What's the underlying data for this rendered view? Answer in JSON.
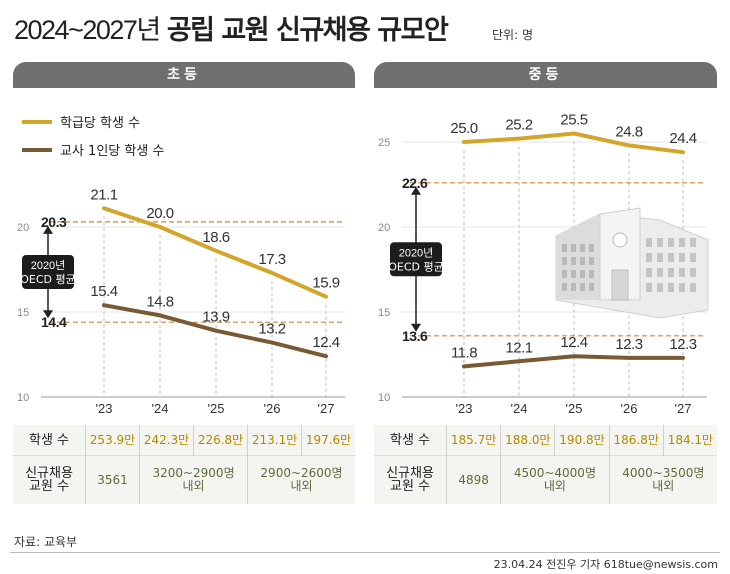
{
  "title": {
    "years": "2024~2027년",
    "heading": "공립 교원 신규채용 규모안"
  },
  "unit": "단위: 명",
  "source": "자료: 교육부",
  "credit": "23.04.24 전진우 기자 618tue@newsis.com",
  "colors": {
    "students_per_class": "#d3a52b",
    "students_per_teacher": "#7a5a34",
    "oecd_line": "#c98a3a",
    "header": "#6f6f6f"
  },
  "chart_data": [
    {
      "type": "line",
      "title": "초등",
      "categories": [
        "'23",
        "'24",
        "'25",
        "'26",
        "'27"
      ],
      "ylim": [
        10,
        26
      ],
      "yticks": [
        "10",
        "15",
        "20"
      ],
      "series": [
        {
          "name": "학급당 학생 수",
          "values": [
            21.1,
            20.0,
            18.6,
            17.3,
            15.9
          ],
          "labels": [
            "21.1",
            "20.0",
            "18.6",
            "17.3",
            "15.9"
          ]
        },
        {
          "name": "교사 1인당 학생 수",
          "values": [
            15.4,
            14.8,
            13.9,
            13.2,
            12.4
          ],
          "labels": [
            "15.4",
            "14.8",
            "13.9",
            "13.2",
            "12.4"
          ]
        }
      ],
      "oecd": {
        "label_line1": "2020년",
        "label_line2": "OECD 평균",
        "values": [
          20.3,
          14.4
        ],
        "labels": [
          "20.3",
          "14.4"
        ]
      }
    },
    {
      "type": "line",
      "title": "중등",
      "categories": [
        "'23",
        "'24",
        "'25",
        "'26",
        "'27"
      ],
      "ylim": [
        10,
        26
      ],
      "yticks": [
        "10",
        "15",
        "20",
        "25"
      ],
      "series": [
        {
          "name": "학급당 학생 수",
          "values": [
            25.0,
            25.2,
            25.5,
            24.8,
            24.4
          ],
          "labels": [
            "25.0",
            "25.2",
            "25.5",
            "24.8",
            "24.4"
          ]
        },
        {
          "name": "교사 1인당 학생 수",
          "values": [
            11.8,
            12.1,
            12.4,
            12.3,
            12.3
          ],
          "labels": [
            "11.8",
            "12.1",
            "12.4",
            "12.3",
            "12.3"
          ]
        }
      ],
      "oecd": {
        "label_line1": "2020년",
        "label_line2": "OECD 평균",
        "values": [
          22.6,
          13.6
        ],
        "labels": [
          "22.6",
          "13.6"
        ]
      }
    }
  ],
  "legend": {
    "students_per_class": "학급당 학생 수",
    "students_per_teacher": "교사 1인당 학생 수"
  },
  "tables": {
    "elementary": {
      "row1_label": "학생 수",
      "row1_values": [
        "253.9만",
        "242.3만",
        "226.8만",
        "213.1만",
        "197.6만"
      ],
      "row2_label_line1": "신규채용",
      "row2_label_line2": "교원 수",
      "row2_values": [
        {
          "line1": "3561",
          "line2": ""
        },
        {
          "line1": "3200~2900명",
          "line2": "내외"
        },
        {
          "line1": "2900~2600명",
          "line2": "내외"
        }
      ]
    },
    "secondary": {
      "row1_label": "학생 수",
      "row1_values": [
        "185.7만",
        "188.0만",
        "190.8만",
        "186.8만",
        "184.1만"
      ],
      "row2_label_line1": "신규채용",
      "row2_label_line2": "교원 수",
      "row2_values": [
        {
          "line1": "4898",
          "line2": ""
        },
        {
          "line1": "4500~4000명",
          "line2": "내외"
        },
        {
          "line1": "4000~3500명",
          "line2": "내외"
        }
      ]
    }
  }
}
